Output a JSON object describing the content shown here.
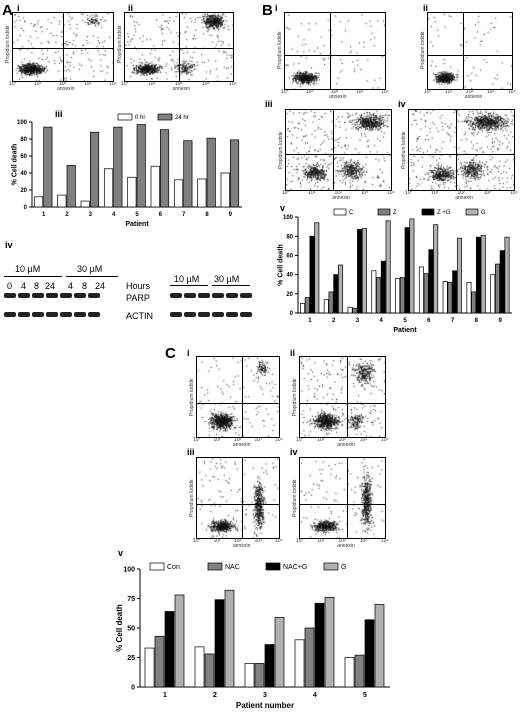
{
  "panels": {
    "A": "A",
    "B": "B",
    "C": "C"
  },
  "sublabels": {
    "i": "i",
    "ii": "ii",
    "iii": "iii",
    "iv": "iv",
    "v": "v"
  },
  "flow_axes": {
    "propidium": "Propidium Iodide",
    "annexin": "annexin",
    "log_ticks": [
      "10°",
      "10¹",
      "10²",
      "10³",
      "10⁴"
    ]
  },
  "western": {
    "conc_a": "10 µM",
    "conc_b": "30 µM",
    "times": [
      "0",
      "4",
      "8",
      "24"
    ],
    "times_b": [
      "4",
      "8",
      "24"
    ],
    "hours": "Hours",
    "parp": "PARP",
    "actin": "ACTIN",
    "right_conc_a": "10 µM",
    "right_conc_b": "30 µM"
  },
  "chart_data": [
    {
      "id": "A-iii",
      "type": "bar",
      "categories": [
        "1",
        "2",
        "3",
        "4",
        "5",
        "6",
        "7",
        "8",
        "9"
      ],
      "series": [
        {
          "name": "0 hr",
          "values": [
            12,
            14,
            7,
            45,
            35,
            48,
            32,
            33,
            40
          ],
          "color": "#ffffff"
        },
        {
          "name": "24 hr",
          "values": [
            94,
            49,
            88,
            94,
            97,
            91,
            78,
            81,
            79
          ],
          "color": "#808080"
        }
      ],
      "xlabel": "Patient",
      "ylabel": "% Cell death",
      "ylim": [
        0,
        100
      ],
      "yticks": [
        0,
        20,
        40,
        60,
        80,
        100
      ],
      "legend": "top-right"
    },
    {
      "id": "B-v",
      "type": "bar",
      "categories": [
        "1",
        "2",
        "3",
        "4",
        "5",
        "6",
        "7",
        "8",
        "9"
      ],
      "series": [
        {
          "name": "C",
          "values": [
            10,
            14,
            6,
            44,
            36,
            48,
            33,
            32,
            40
          ],
          "color": "#ffffff"
        },
        {
          "name": "Z",
          "values": [
            16,
            22,
            5,
            37,
            37,
            41,
            32,
            22,
            51
          ],
          "color": "#808080"
        },
        {
          "name": "Z +G",
          "values": [
            80,
            40,
            87,
            54,
            89,
            66,
            44,
            79,
            65
          ],
          "color": "#000000"
        },
        {
          "name": "G",
          "values": [
            94,
            50,
            88,
            96,
            98,
            92,
            78,
            81,
            79
          ],
          "color": "#b0b0b0"
        }
      ],
      "xlabel": "Patient",
      "ylabel": "% Cell death",
      "ylim": [
        0,
        100
      ],
      "yticks": [
        0,
        20,
        40,
        60,
        80,
        100
      ],
      "legend": "top"
    },
    {
      "id": "C-v",
      "type": "bar",
      "categories": [
        "1",
        "2",
        "3",
        "4",
        "5"
      ],
      "series": [
        {
          "name": "Con",
          "values": [
            33,
            34,
            20,
            40,
            25
          ],
          "color": "#ffffff"
        },
        {
          "name": "NAC",
          "values": [
            43,
            28,
            20,
            50,
            27
          ],
          "color": "#808080"
        },
        {
          "name": "NAC+G",
          "values": [
            64,
            74,
            36,
            71,
            57
          ],
          "color": "#000000"
        },
        {
          "name": "G",
          "values": [
            78,
            82,
            59,
            76,
            70
          ],
          "color": "#b0b0b0"
        }
      ],
      "xlabel": "Patient number",
      "ylabel": "% Cell death",
      "ylim": [
        0,
        100
      ],
      "yticks": [
        0,
        25,
        50,
        75,
        100
      ],
      "legend": "top"
    }
  ]
}
